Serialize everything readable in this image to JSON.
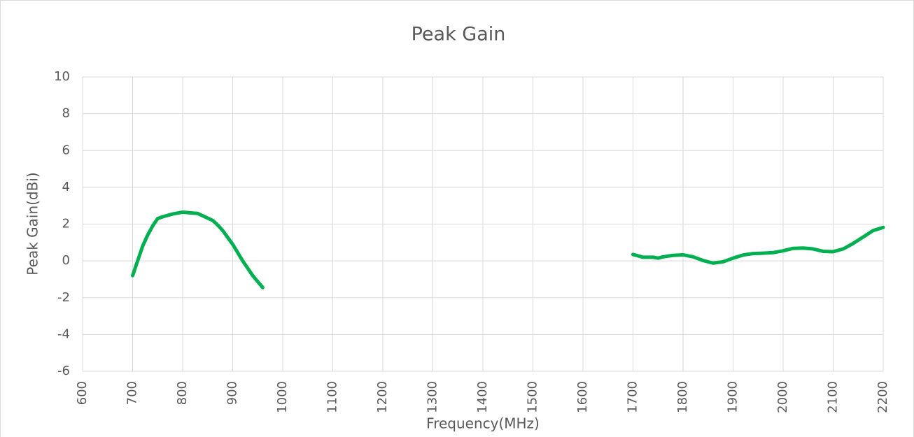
{
  "chart_data": {
    "type": "line",
    "title": "Peak Gain",
    "x_label": "Frequency(MHz)",
    "y_label": "Peak Gain(dBi)",
    "xlim": [
      600,
      2200
    ],
    "xticks": [
      600,
      700,
      800,
      900,
      1000,
      1100,
      1200,
      1300,
      1400,
      1500,
      1600,
      1700,
      1800,
      1900,
      2000,
      2100,
      2200
    ],
    "ylim": [
      -6,
      10
    ],
    "yticks": [
      -6,
      -4,
      -2,
      0,
      2,
      4,
      6,
      8,
      10
    ],
    "grid": true,
    "series": [
      {
        "color": "#00b050",
        "x": [
          700,
          710,
          720,
          730,
          740,
          750,
          760,
          780,
          800,
          820,
          830,
          840,
          860,
          870,
          880,
          900,
          920,
          940,
          960
        ],
        "values": [
          -0.8,
          0.0,
          0.8,
          1.4,
          1.9,
          2.3,
          2.4,
          2.55,
          2.65,
          2.6,
          2.58,
          2.45,
          2.2,
          1.95,
          1.65,
          0.9,
          0.0,
          -0.8,
          -1.45
        ]
      },
      {
        "color": "#00b050",
        "x": [
          1700,
          1720,
          1740,
          1750,
          1760,
          1780,
          1800,
          1820,
          1840,
          1860,
          1880,
          1900,
          1920,
          1940,
          1960,
          1980,
          2000,
          2020,
          2040,
          2060,
          2080,
          2100,
          2120,
          2140,
          2160,
          2180,
          2200
        ],
        "values": [
          0.35,
          0.2,
          0.2,
          0.15,
          0.22,
          0.3,
          0.33,
          0.22,
          0.02,
          -0.12,
          -0.05,
          0.15,
          0.32,
          0.4,
          0.42,
          0.45,
          0.55,
          0.68,
          0.7,
          0.65,
          0.52,
          0.5,
          0.65,
          0.95,
          1.3,
          1.65,
          1.82
        ]
      }
    ]
  }
}
